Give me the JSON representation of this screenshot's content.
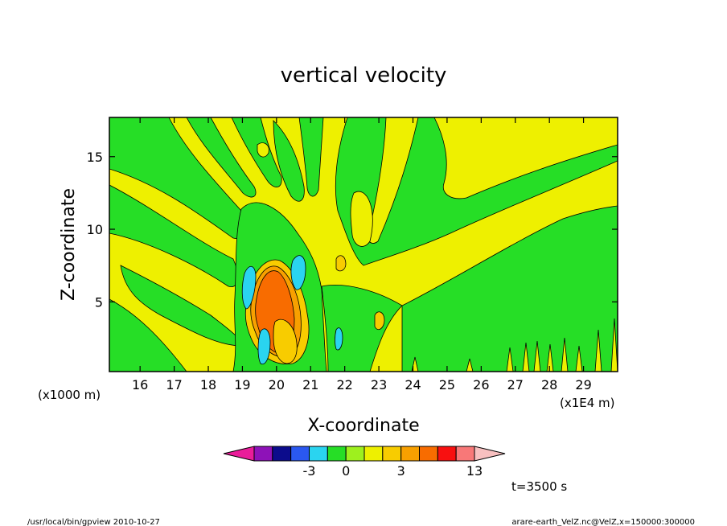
{
  "chart_data": {
    "type": "heatmap",
    "title": "vertical velocity",
    "xlabel": "X-coordinate",
    "ylabel": "Z-coordinate",
    "x_unit_left": "(x1000 m)",
    "x_unit_right": "(x1E4 m)",
    "x_ticks": [
      "16",
      "17",
      "18",
      "19",
      "20",
      "21",
      "22",
      "23",
      "24",
      "25",
      "26",
      "27",
      "28",
      "29"
    ],
    "y_ticks": [
      "5",
      "10",
      "15"
    ],
    "xlim": [
      15.1,
      30.0
    ],
    "ylim": [
      0.2,
      17.7
    ],
    "time_label": "t=3500 s",
    "colorbar": {
      "colors": [
        "#ea1c9a",
        "#8e12b8",
        "#0c0c8c",
        "#2a58f0",
        "#2ad4f0",
        "#26de26",
        "#9ef01e",
        "#eef000",
        "#f8cc00",
        "#f8a000",
        "#f86c00",
        "#f81010",
        "#f87878",
        "#f8c0c0"
      ],
      "tick_labels": [
        "-3",
        "0",
        "3",
        "13"
      ]
    },
    "regions": {
      "background": "#eef000",
      "positive_light": "#26de26",
      "updraft_weak": "#f8cc00",
      "updraft_mid": "#f8a000",
      "updraft_core": "#f86c00",
      "downdraft": "#2ad4f0"
    }
  },
  "footer": {
    "left": "/usr/local/bin/gpview   2010-10-27",
    "right": "arare-earth_VelZ.nc@VelZ,x=150000:300000"
  }
}
